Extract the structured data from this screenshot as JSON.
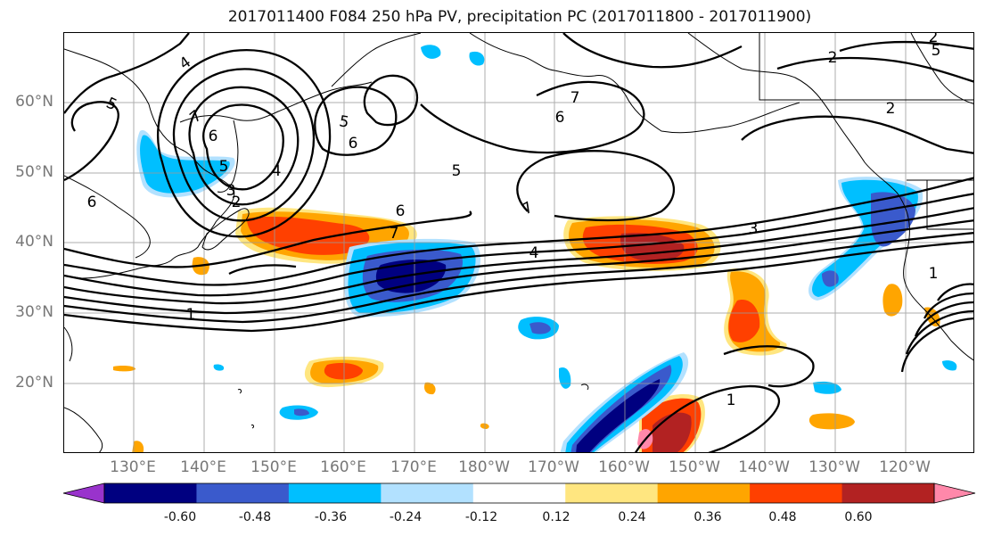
{
  "title": "2017011400 F084 250 hPa PV, precipitation PC (2017011800 - 2017011900)",
  "lat_labels": [
    "60°N",
    "50°N",
    "40°N",
    "30°N",
    "20°N"
  ],
  "lon_labels": [
    "130°E",
    "140°E",
    "150°E",
    "160°E",
    "170°E",
    "180°W",
    "170°W",
    "160°W",
    "150°W",
    "140°W",
    "130°W",
    "120°W"
  ],
  "colorbar": {
    "colors": [
      "#9933cc",
      "#000080",
      "#3a5acc",
      "#00bfff",
      "#b2e1ff",
      "#ffffff",
      "#ffe680",
      "#ffa500",
      "#ff4000",
      "#b22222",
      "#ff88aa"
    ],
    "tick_labels": [
      "-0.60",
      "-0.48",
      "-0.36",
      "-0.24",
      "-0.12",
      "0.12",
      "0.24",
      "0.36",
      "0.48",
      "0.60"
    ]
  },
  "contour_labels": [
    "4",
    "5",
    "5",
    "6",
    "7",
    "6",
    "5",
    "4",
    "3",
    "2",
    "5",
    "6",
    "2",
    "1",
    "6",
    "7",
    "6",
    "7",
    "5",
    "4",
    "3",
    "1",
    "7",
    "2",
    "1",
    "2"
  ]
}
